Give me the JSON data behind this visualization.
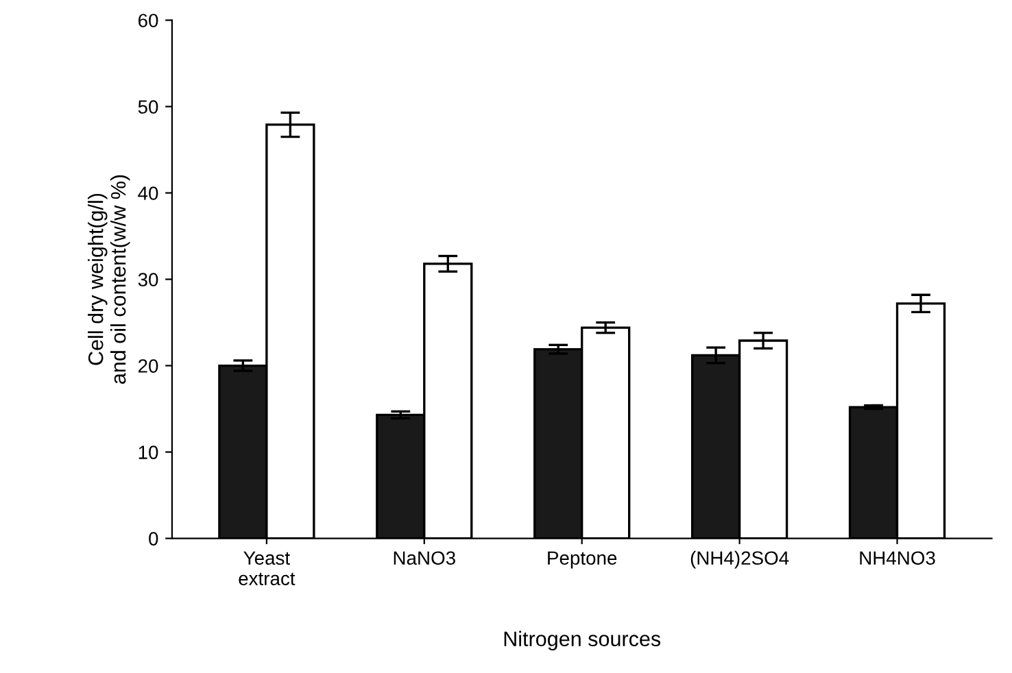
{
  "chart_data": {
    "type": "bar",
    "xlabel": "Nitrogen sources",
    "ylabel": "Cell dry weight(g/l)\nand oil content(w/w %)",
    "categories": [
      "Yeast\nextract",
      "NaNO3",
      "Peptone",
      "(NH4)2SO4",
      "NH4NO3"
    ],
    "series": [
      {
        "color": "#1a1a1a",
        "values": [
          20.0,
          14.3,
          21.9,
          21.2,
          15.2
        ],
        "errors": [
          0.6,
          0.4,
          0.5,
          0.9,
          0.2
        ]
      },
      {
        "color": "#ffffff",
        "values": [
          47.9,
          31.8,
          24.4,
          22.9,
          27.2
        ],
        "errors": [
          1.4,
          0.9,
          0.6,
          0.9,
          1.0
        ]
      }
    ],
    "ylim": [
      0,
      60
    ],
    "yticks": [
      0,
      10,
      20,
      30,
      40,
      50,
      60
    ],
    "grid": false,
    "legend": false
  }
}
